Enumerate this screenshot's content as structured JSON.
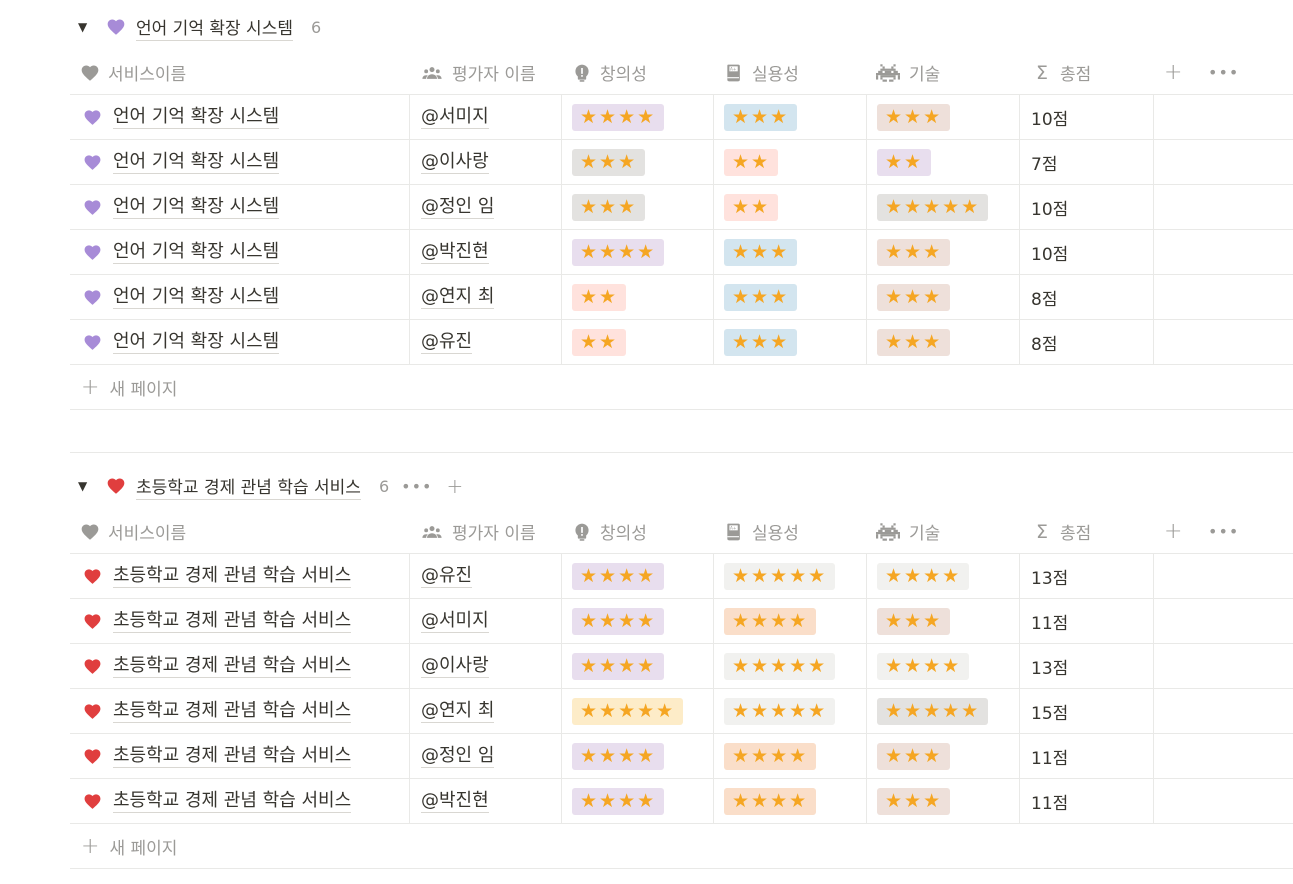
{
  "icons": {
    "heart_purple": "purple-heart-icon",
    "heart_red": "red-heart-icon",
    "heart_gray": "gray-heart-icon",
    "people": "people-icon",
    "creativity": "lightbulb-alert-icon",
    "usefulness": "book-icon",
    "tech": "space-invader-icon",
    "sum": "sigma-icon"
  },
  "colors": {
    "purple_heart": "#a78bd7",
    "red_heart": "#e03e3e",
    "gray_heart": "#9b9a97",
    "star": "#f5a623",
    "tag_purple": "#e8deee",
    "tag_gray": "#e3e2e0",
    "tag_red": "#ffe2dd",
    "tag_blue": "#d3e5ef",
    "tag_brown": "#eee0da",
    "tag_orange": "#fadec9",
    "tag_yellow": "#fdecc8",
    "tag_default": "#f1f1ef"
  },
  "columns": {
    "name": "서비스이름",
    "evaluator": "평가자 이름",
    "creativity": "창의성",
    "usefulness": "실용성",
    "tech": "기술",
    "total": "총점",
    "add": "+",
    "more": "•••"
  },
  "new_page_label": "새 페이지",
  "groups": [
    {
      "title": "언어 기억 확장 시스템",
      "count": "6",
      "heart": "purple",
      "rows": [
        {
          "name": "언어 기억 확장 시스템",
          "evaluator": "@서미지",
          "creativity": "★★★★",
          "creativity_tag": "purple",
          "usefulness": "★★★",
          "usefulness_tag": "blue",
          "tech": "★★★",
          "tech_tag": "brown",
          "total": "10점"
        },
        {
          "name": "언어 기억 확장 시스템",
          "evaluator": "@이사랑",
          "creativity": "★★★",
          "creativity_tag": "gray",
          "usefulness": "★★",
          "usefulness_tag": "red",
          "tech": "★★",
          "tech_tag": "purple",
          "total": "7점"
        },
        {
          "name": "언어 기억 확장 시스템",
          "evaluator": "@정인 임",
          "creativity": "★★★",
          "creativity_tag": "gray",
          "usefulness": "★★",
          "usefulness_tag": "red",
          "tech": "★★★★★",
          "tech_tag": "gray",
          "total": "10점"
        },
        {
          "name": "언어 기억 확장 시스템",
          "evaluator": "@박진현",
          "creativity": "★★★★",
          "creativity_tag": "purple",
          "usefulness": "★★★",
          "usefulness_tag": "blue",
          "tech": "★★★",
          "tech_tag": "brown",
          "total": "10점"
        },
        {
          "name": "언어 기억 확장 시스템",
          "evaluator": "@연지 최",
          "creativity": "★★",
          "creativity_tag": "red",
          "usefulness": "★★★",
          "usefulness_tag": "blue",
          "tech": "★★★",
          "tech_tag": "brown",
          "total": "8점"
        },
        {
          "name": "언어 기억 확장 시스템",
          "evaluator": "@유진",
          "creativity": "★★",
          "creativity_tag": "red",
          "usefulness": "★★★",
          "usefulness_tag": "blue",
          "tech": "★★★",
          "tech_tag": "brown",
          "total": "8점"
        }
      ]
    },
    {
      "title": "초등학교 경제 관념 학습 서비스",
      "count": "6",
      "heart": "red",
      "rows": [
        {
          "name": "초등학교 경제 관념 학습 서비스",
          "evaluator": "@유진",
          "creativity": "★★★★",
          "creativity_tag": "purple",
          "usefulness": "★★★★★",
          "usefulness_tag": "default",
          "tech": "★★★★",
          "tech_tag": "default",
          "total": "13점"
        },
        {
          "name": "초등학교 경제 관념 학습 서비스",
          "evaluator": "@서미지",
          "creativity": "★★★★",
          "creativity_tag": "purple",
          "usefulness": "★★★★",
          "usefulness_tag": "orange",
          "tech": "★★★",
          "tech_tag": "brown",
          "total": "11점"
        },
        {
          "name": "초등학교 경제 관념 학습 서비스",
          "evaluator": "@이사랑",
          "creativity": "★★★★",
          "creativity_tag": "purple",
          "usefulness": "★★★★★",
          "usefulness_tag": "default",
          "tech": "★★★★",
          "tech_tag": "default",
          "total": "13점"
        },
        {
          "name": "초등학교 경제 관념 학습 서비스",
          "evaluator": "@연지 최",
          "creativity": "★★★★★",
          "creativity_tag": "yellow",
          "usefulness": "★★★★★",
          "usefulness_tag": "default",
          "tech": "★★★★★",
          "tech_tag": "gray",
          "total": "15점"
        },
        {
          "name": "초등학교 경제 관념 학습 서비스",
          "evaluator": "@정인 임",
          "creativity": "★★★★",
          "creativity_tag": "purple",
          "usefulness": "★★★★",
          "usefulness_tag": "orange",
          "tech": "★★★",
          "tech_tag": "brown",
          "total": "11점"
        },
        {
          "name": "초등학교 경제 관념 학습 서비스",
          "evaluator": "@박진현",
          "creativity": "★★★★",
          "creativity_tag": "purple",
          "usefulness": "★★★★",
          "usefulness_tag": "orange",
          "tech": "★★★",
          "tech_tag": "brown",
          "total": "11점"
        }
      ]
    }
  ]
}
